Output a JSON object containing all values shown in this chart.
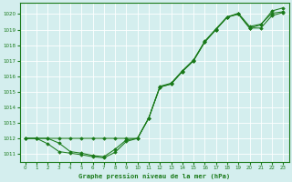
{
  "hours": [
    0,
    1,
    2,
    3,
    4,
    5,
    6,
    7,
    8,
    9,
    10,
    11,
    12,
    13,
    14,
    15,
    16,
    17,
    18,
    19,
    20,
    21,
    22,
    23
  ],
  "s1": [
    1012.0,
    1012.0,
    1012.0,
    1012.0,
    1012.0,
    1012.0,
    1012.0,
    1012.0,
    1012.0,
    1012.0,
    1012.0,
    1013.3,
    1015.3,
    1015.5,
    1016.3,
    1017.0,
    1018.2,
    1019.0,
    1019.8,
    1020.0,
    1019.1,
    1019.3,
    1020.2,
    1020.4
  ],
  "s2": [
    1012.0,
    1012.0,
    1012.0,
    1011.7,
    1011.15,
    1011.05,
    1010.9,
    1010.82,
    1011.3,
    1011.9,
    1012.0,
    1013.3,
    1015.35,
    1015.55,
    1016.35,
    1017.05,
    1018.25,
    1019.05,
    1019.82,
    1020.05,
    1019.2,
    1019.35,
    1020.05,
    1020.15
  ],
  "s3": [
    1012.0,
    1012.0,
    1011.65,
    1011.15,
    1011.05,
    1010.95,
    1010.82,
    1010.75,
    1011.1,
    1011.8,
    1012.0,
    1013.3,
    1015.3,
    1015.5,
    1016.3,
    1017.0,
    1018.2,
    1019.0,
    1019.8,
    1020.0,
    1019.1,
    1019.1,
    1019.9,
    1020.1
  ],
  "line_color": "#1a7a1a",
  "bg_color": "#d4eeee",
  "title": "Graphe pression niveau de la mer (hPa)",
  "ylim": [
    1010.5,
    1020.7
  ],
  "xlim": [
    -0.5,
    23.5
  ],
  "yticks": [
    1011,
    1012,
    1013,
    1014,
    1015,
    1016,
    1017,
    1018,
    1019,
    1020
  ],
  "xticks": [
    0,
    1,
    2,
    3,
    4,
    5,
    6,
    7,
    8,
    9,
    10,
    11,
    12,
    13,
    14,
    15,
    16,
    17,
    18,
    19,
    20,
    21,
    22,
    23
  ]
}
